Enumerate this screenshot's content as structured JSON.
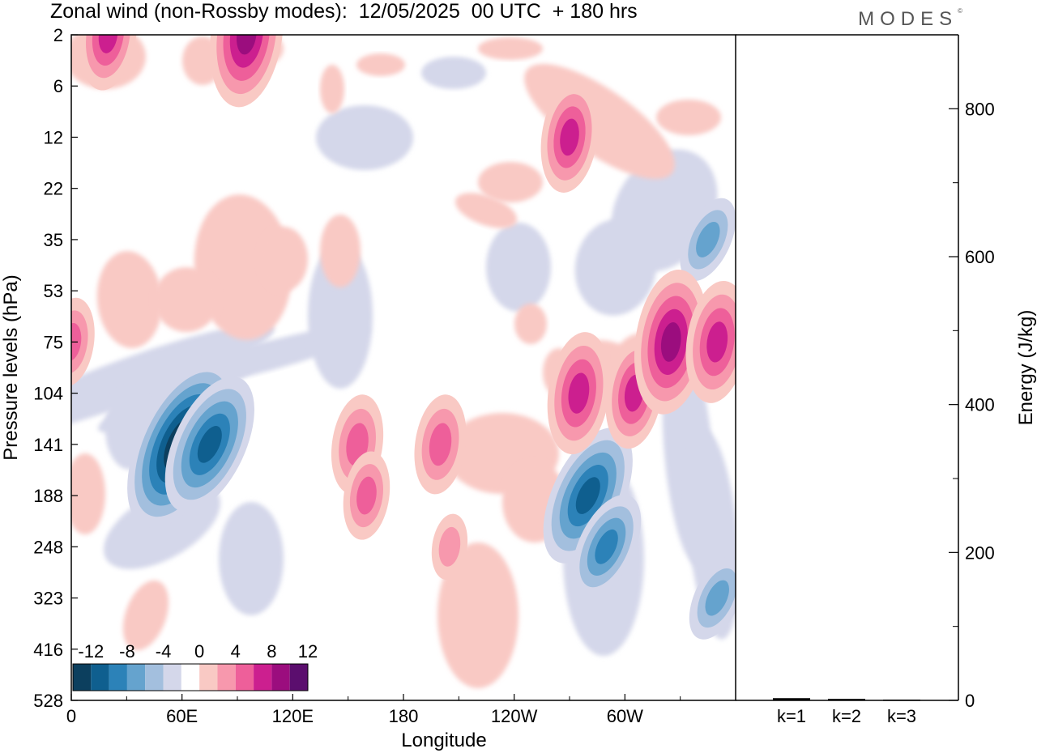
{
  "header": {
    "title": "Zonal wind (non-Rossby modes):  12/05/2025  00 UTC  + 180 hrs",
    "brand": "MODES",
    "brand_mark": "©"
  },
  "chart_data": [
    {
      "type": "heatmap",
      "xlabel": "Longitude",
      "ylabel": "Pressure levels (hPa)",
      "x_ticks": [
        "0",
        "60E",
        "120E",
        "180",
        "120W",
        "60W"
      ],
      "y_ticks": [
        "2",
        "6",
        "12",
        "22",
        "35",
        "53",
        "75",
        "104",
        "141",
        "188",
        "248",
        "323",
        "416",
        "528"
      ],
      "colorbar": {
        "labels": [
          "-12",
          "-8",
          "-4",
          "0",
          "4",
          "8",
          "12"
        ],
        "bins": [
          -14,
          -12,
          -10,
          -8,
          -6,
          -4,
          -2,
          2,
          4,
          6,
          8,
          10,
          12,
          14
        ],
        "colors": [
          "#0c3f5e",
          "#0f5f8f",
          "#2c82b8",
          "#65a3ce",
          "#a3bfde",
          "#d4d7ea",
          "#ffffff",
          "#f9c9c4",
          "#f798ad",
          "#ee5f9a",
          "#cc1f8f",
          "#9b0d7e",
          "#5b0e6e"
        ]
      },
      "features": [
        {
          "lon": 60,
          "level": "141",
          "value": -13
        },
        {
          "lon": 75,
          "level": "141",
          "value": -10
        },
        {
          "lon": 280,
          "level": "188",
          "value": -10
        },
        {
          "lon": 290,
          "level": "248",
          "value": -7
        },
        {
          "lon": 345,
          "level": "35",
          "value": -5
        },
        {
          "lon": 350,
          "level": "323",
          "value": -5
        },
        {
          "lon": 155,
          "level": "141",
          "value": 6
        },
        {
          "lon": 160,
          "level": "188",
          "value": 5
        },
        {
          "lon": 200,
          "level": "141",
          "value": 6
        },
        {
          "lon": 205,
          "level": "248",
          "value": 3
        },
        {
          "lon": 270,
          "level": "12",
          "value": 7
        },
        {
          "lon": 275,
          "level": "104",
          "value": 8
        },
        {
          "lon": 305,
          "level": "104",
          "value": 7
        },
        {
          "lon": 325,
          "level": "75",
          "value": 10
        },
        {
          "lon": 350,
          "level": "75",
          "value": 8
        },
        {
          "lon": 0,
          "level": "75",
          "value": 5
        },
        {
          "lon": 20,
          "level": "2",
          "value": 7
        },
        {
          "lon": 95,
          "level": "2",
          "value": 10
        }
      ]
    },
    {
      "type": "bar",
      "categories": [
        "k=1",
        "k=2",
        "k=3"
      ],
      "values": [
        3,
        2,
        1
      ],
      "ylabel": "Energy (J/kg)",
      "ylim": [
        0,
        900
      ],
      "y_ticks": [
        "0",
        "200",
        "400",
        "600",
        "800"
      ]
    }
  ]
}
